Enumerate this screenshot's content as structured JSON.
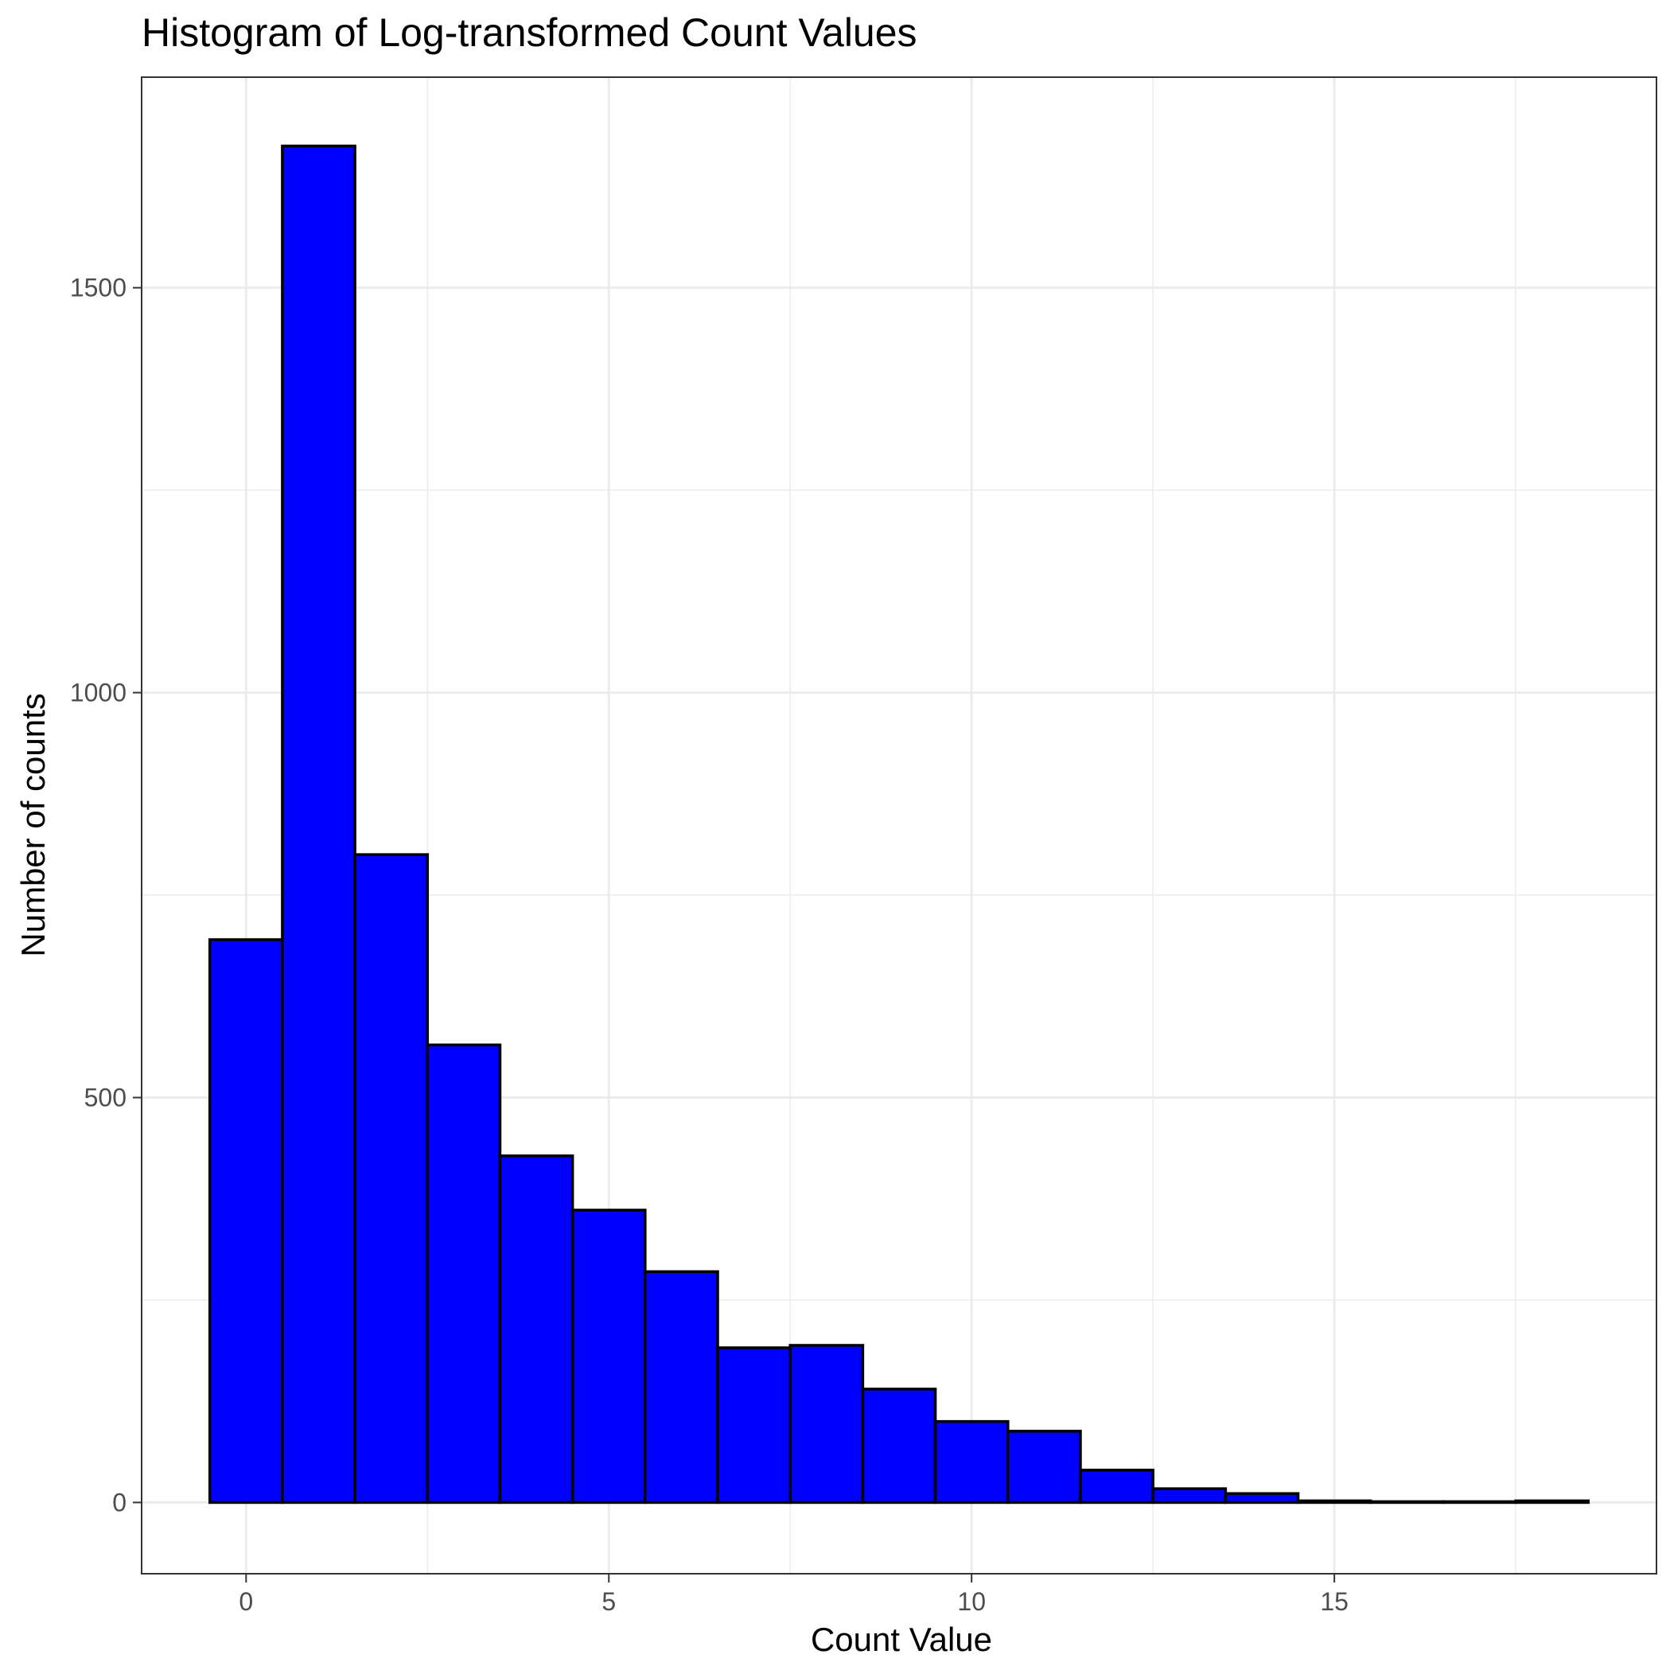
{
  "chart_data": {
    "type": "bar",
    "title": "Histogram of Log-transformed Count Values",
    "xlabel": "Count Value",
    "ylabel": "Number of counts",
    "bin_width": 1,
    "bins": [
      {
        "center": 0,
        "count": 695
      },
      {
        "center": 1,
        "count": 1675
      },
      {
        "center": 2,
        "count": 800
      },
      {
        "center": 3,
        "count": 565
      },
      {
        "center": 4,
        "count": 428
      },
      {
        "center": 5,
        "count": 361
      },
      {
        "center": 6,
        "count": 285
      },
      {
        "center": 7,
        "count": 191
      },
      {
        "center": 8,
        "count": 194
      },
      {
        "center": 9,
        "count": 140
      },
      {
        "center": 10,
        "count": 100
      },
      {
        "center": 11,
        "count": 88
      },
      {
        "center": 12,
        "count": 40
      },
      {
        "center": 13,
        "count": 17
      },
      {
        "center": 14,
        "count": 11
      },
      {
        "center": 15,
        "count": 2
      },
      {
        "center": 16,
        "count": 1
      },
      {
        "center": 17,
        "count": 1
      },
      {
        "center": 18,
        "count": 2
      }
    ],
    "xlim": [
      -1.44,
      19.44
    ],
    "ylim": [
      -88,
      1760
    ],
    "x_ticks": [
      0,
      5,
      10,
      15
    ],
    "x_tick_labels": [
      "0",
      "5",
      "10",
      "15"
    ],
    "y_ticks": [
      0,
      500,
      1000,
      1500
    ],
    "y_tick_labels": [
      "0",
      "500",
      "1000",
      "1500"
    ],
    "x_minor_ticks": [
      2.5,
      7.5,
      12.5,
      17.5
    ],
    "y_minor_ticks": [
      250,
      750,
      1250
    ],
    "grid": true,
    "legend": "none",
    "colors": {
      "bar_fill": "#0000ff",
      "bar_outline": "#000000",
      "grid": "#ebebeb",
      "panel_border": "#333333"
    }
  }
}
